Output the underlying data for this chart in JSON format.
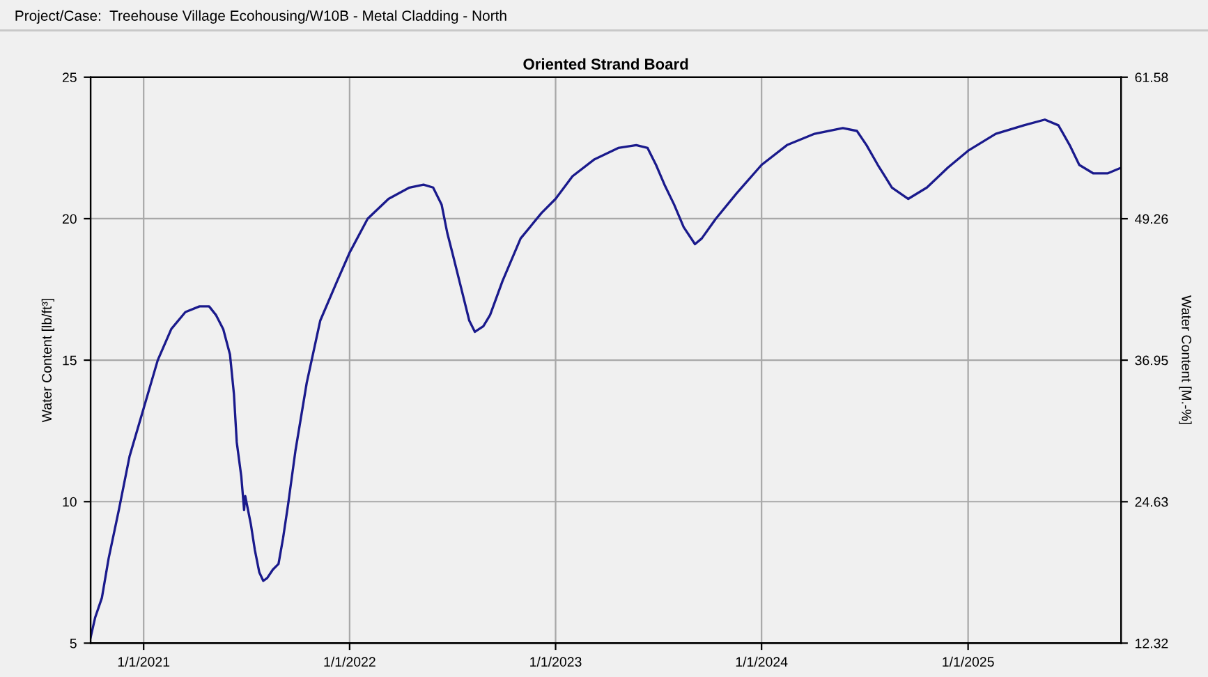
{
  "chart_data": {
    "type": "line",
    "title": "Oriented Strand Board",
    "annotations": [
      "Project/Case:  Treehouse Village Ecohousing/W10B - Metal Cladding - North"
    ],
    "ylabel": "Water Content [lb/ft³]",
    "y2label": "Water Content [M.-%]",
    "x": [
      "2020-09-29",
      "2020-10-07",
      "2020-10-19",
      "2020-10-31",
      "2020-11-18",
      "2020-12-07",
      "2021-01-01",
      "2021-01-26",
      "2021-02-19",
      "2021-03-16",
      "2021-04-10",
      "2021-04-27",
      "2021-05-09",
      "2021-05-22",
      "2021-06-03",
      "2021-06-10",
      "2021-06-15",
      "2021-06-23",
      "2021-06-28",
      "2021-06-30",
      "2021-07-05",
      "2021-07-10",
      "2021-07-17",
      "2021-07-25",
      "2021-08-01",
      "2021-08-08",
      "2021-08-18",
      "2021-08-28",
      "2021-09-05",
      "2021-09-14",
      "2021-09-27",
      "2021-10-17",
      "2021-11-10",
      "2021-12-10",
      "2022-01-01",
      "2022-02-02",
      "2022-03-11",
      "2022-04-17",
      "2022-05-12",
      "2022-05-29",
      "2022-06-13",
      "2022-06-23",
      "2022-07-02",
      "2022-07-17",
      "2022-08-01",
      "2022-08-11",
      "2022-08-26",
      "2022-09-07",
      "2022-09-29",
      "2022-10-31",
      "2022-12-07",
      "2023-01-01",
      "2023-01-31",
      "2023-03-11",
      "2023-04-22",
      "2023-05-24",
      "2023-06-13",
      "2023-06-28",
      "2023-07-13",
      "2023-07-30",
      "2023-08-16",
      "2023-09-05",
      "2023-09-17",
      "2023-10-12",
      "2023-11-18",
      "2024-01-01",
      "2024-02-15",
      "2024-04-04",
      "2024-05-24",
      "2024-06-18",
      "2024-07-05",
      "2024-07-25",
      "2024-08-19",
      "2024-09-17",
      "2024-10-20",
      "2024-11-26",
      "2025-01-01",
      "2025-02-19",
      "2025-04-10",
      "2025-05-17",
      "2025-06-10",
      "2025-06-30",
      "2025-07-17",
      "2025-08-11",
      "2025-09-05",
      "2025-09-29"
    ],
    "series": [
      {
        "color": "#1a1a8c",
        "values": [
          5.2,
          5.9,
          6.6,
          8.0,
          9.7,
          11.6,
          13.3,
          15.0,
          16.1,
          16.7,
          16.9,
          16.9,
          16.6,
          16.1,
          15.2,
          13.8,
          12.1,
          10.9,
          9.7,
          10.2,
          9.7,
          9.2,
          8.3,
          7.5,
          7.2,
          7.3,
          7.6,
          7.8,
          8.7,
          9.9,
          11.8,
          14.2,
          16.4,
          17.8,
          18.8,
          20.0,
          20.7,
          21.1,
          21.2,
          21.1,
          20.5,
          19.5,
          18.8,
          17.6,
          16.4,
          16.0,
          16.2,
          16.6,
          17.8,
          19.3,
          20.2,
          20.7,
          21.5,
          22.1,
          22.5,
          22.6,
          22.5,
          21.9,
          21.2,
          20.5,
          19.7,
          19.1,
          19.3,
          20.0,
          20.9,
          21.9,
          22.6,
          23.0,
          23.2,
          23.1,
          22.6,
          21.9,
          21.1,
          20.7,
          21.1,
          21.8,
          22.4,
          23.0,
          23.3,
          23.5,
          23.3,
          22.6,
          21.9,
          21.6,
          21.6,
          21.8
        ]
      }
    ],
    "xlim": [
      "2020-09-29",
      "2025-09-29"
    ],
    "xticks": [
      {
        "value": "2021-01-01",
        "label": "1/1/2021"
      },
      {
        "value": "2022-01-01",
        "label": "1/1/2022"
      },
      {
        "value": "2023-01-01",
        "label": "1/1/2023"
      },
      {
        "value": "2024-01-01",
        "label": "1/1/2024"
      },
      {
        "value": "2025-01-01",
        "label": "1/1/2025"
      }
    ],
    "ylim": [
      5,
      25
    ],
    "yticks": [
      5,
      10,
      15,
      20,
      25
    ],
    "y2lim": [
      12.32,
      61.58
    ],
    "y2ticks": [
      12.32,
      24.63,
      36.95,
      49.26,
      61.58
    ],
    "grid": true,
    "line_style": "solid"
  }
}
